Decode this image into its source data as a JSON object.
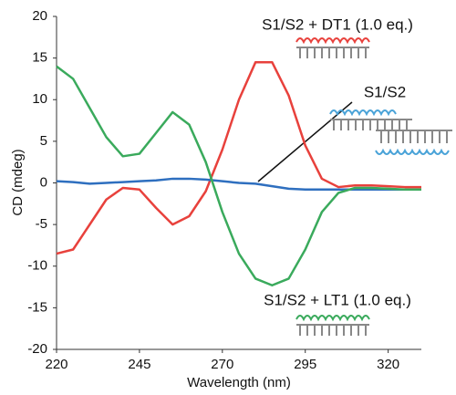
{
  "chart_data": {
    "type": "line",
    "x_label": "Wavelength (nm)",
    "y_label": "CD (mdeg)",
    "x": [
      220,
      225,
      230,
      235,
      240,
      245,
      250,
      255,
      260,
      265,
      270,
      275,
      280,
      285,
      290,
      295,
      300,
      305,
      310,
      315,
      320,
      325,
      330
    ],
    "series": [
      {
        "name": "S1/S2 + DT1 (1.0 eq.)",
        "color": "#e8413c",
        "values": [
          -8.5,
          -8,
          -5,
          -2,
          -0.6,
          -0.8,
          -3,
          -5,
          -4,
          -1,
          4,
          10,
          14.5,
          14.5,
          10.5,
          4.5,
          0.5,
          -0.5,
          -0.3,
          -0.3,
          -0.4,
          -0.5,
          -0.5
        ]
      },
      {
        "name": "S1/S2",
        "color": "#2e6fbf",
        "values": [
          0.2,
          0.1,
          -0.1,
          0,
          0.1,
          0.2,
          0.3,
          0.5,
          0.5,
          0.4,
          0.2,
          0,
          -0.1,
          -0.4,
          -0.7,
          -0.8,
          -0.8,
          -0.8,
          -0.8,
          -0.8,
          -0.8,
          -0.8,
          -0.8
        ]
      },
      {
        "name": "S1/S2 + LT1 (1.0 eq.)",
        "color": "#3aaa5c",
        "values": [
          14,
          12.5,
          9,
          5.5,
          3.2,
          3.5,
          6,
          8.5,
          7,
          2.5,
          -3.5,
          -8.5,
          -11.5,
          -12.3,
          -11.5,
          -8,
          -3.5,
          -1.2,
          -0.6,
          -0.6,
          -0.7,
          -0.8,
          -0.8
        ]
      }
    ],
    "xlim": [
      220,
      330
    ],
    "ylim": [
      -20,
      20
    ],
    "xticks": [
      220,
      245,
      270,
      295,
      320
    ],
    "yticks": [
      -20,
      -15,
      -10,
      -5,
      0,
      5,
      10,
      15,
      20
    ],
    "grid": false
  }
}
